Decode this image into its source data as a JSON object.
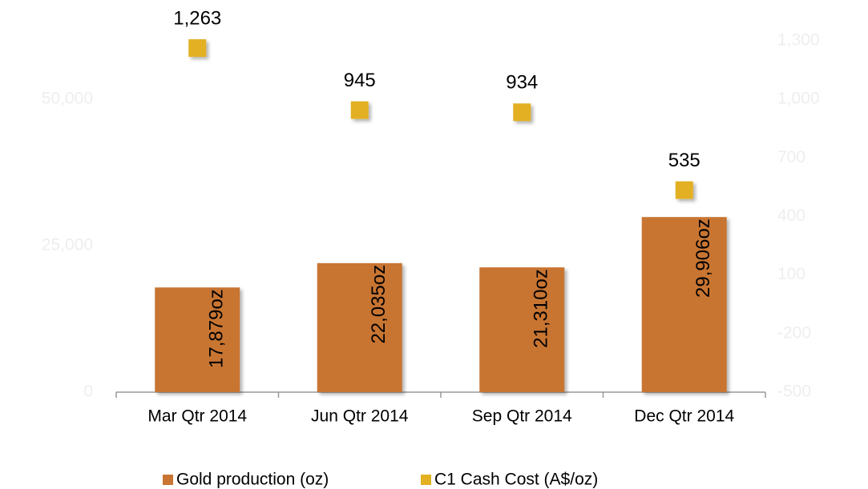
{
  "chart_data": {
    "type": "bar",
    "categories": [
      "Mar Qtr 2014",
      "Jun Qtr 2014",
      "Sep Qtr 2014",
      "Dec Qtr 2014"
    ],
    "series": [
      {
        "name": "Gold production (oz)",
        "type": "bar",
        "color": "#c87533",
        "values": [
          17879,
          22035,
          21310,
          29906
        ],
        "value_labels": [
          "17,879oz",
          "22,035oz",
          "21,310oz",
          "29,906oz"
        ]
      },
      {
        "name": "C1 Cash Cost (A$/oz)",
        "type": "scatter",
        "axis": "y2",
        "color": "#e2b021",
        "values": [
          1263,
          945,
          934,
          535
        ],
        "value_labels": [
          "1,263",
          "945",
          "934",
          "535"
        ]
      }
    ],
    "ylim": [
      0,
      60000
    ],
    "yticks": [
      0,
      {
        "value": 25000,
        "label": "25,000"
      },
      {
        "value": 50000,
        "label": "50,000"
      }
    ],
    "y2lim": [
      -500,
      1300
    ],
    "y2ticks": [
      -500,
      -200,
      100,
      400,
      700,
      {
        "value": 1000,
        "label": "1,000"
      },
      {
        "value": 1300,
        "label": "1,300"
      }
    ],
    "legend": "bottom"
  }
}
